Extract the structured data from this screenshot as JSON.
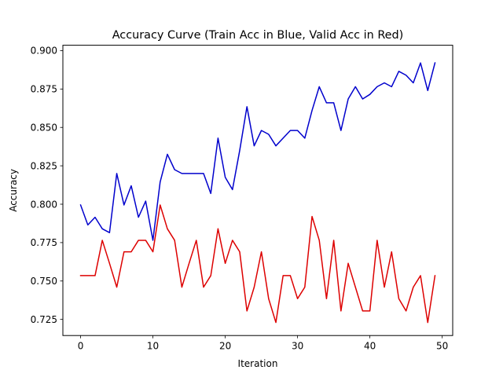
{
  "chart_data": {
    "type": "line",
    "title": "Accuracy Curve (Train Acc in Blue, Valid Acc in Red)",
    "xlabel": "Iteration",
    "ylabel": "Accuracy",
    "xlim": [
      -2.45,
      51.45
    ],
    "ylim": [
      0.7145,
      0.9035
    ],
    "xticks": [
      0,
      10,
      20,
      30,
      40,
      50
    ],
    "xtick_labels": [
      "0",
      "10",
      "20",
      "30",
      "40",
      "50"
    ],
    "yticks": [
      0.725,
      0.75,
      0.775,
      0.8,
      0.825,
      0.85,
      0.875,
      0.9
    ],
    "ytick_labels": [
      "0.725",
      "0.750",
      "0.775",
      "0.800",
      "0.825",
      "0.850",
      "0.875",
      "0.900"
    ],
    "grid": false,
    "x": [
      0,
      1,
      2,
      3,
      4,
      5,
      6,
      7,
      8,
      9,
      10,
      11,
      12,
      13,
      14,
      15,
      16,
      17,
      18,
      19,
      20,
      21,
      22,
      23,
      24,
      25,
      26,
      27,
      28,
      29,
      30,
      31,
      32,
      33,
      34,
      35,
      36,
      37,
      38,
      39,
      40,
      41,
      42,
      43,
      44,
      45,
      46,
      47,
      48,
      49
    ],
    "series": [
      {
        "color": "#0000cc",
        "values": [
          0.7995,
          0.7865,
          0.7915,
          0.784,
          0.7815,
          0.82,
          0.7995,
          0.812,
          0.7915,
          0.802,
          0.7765,
          0.8145,
          0.8325,
          0.8225,
          0.82,
          0.82,
          0.82,
          0.82,
          0.807,
          0.843,
          0.8175,
          0.8095,
          0.835,
          0.8635,
          0.838,
          0.848,
          0.8455,
          0.838,
          0.843,
          0.848,
          0.848,
          0.843,
          0.861,
          0.8765,
          0.866,
          0.866,
          0.848,
          0.8685,
          0.8765,
          0.8685,
          0.8715,
          0.8765,
          0.879,
          0.8765,
          0.8865,
          0.884,
          0.879,
          0.892,
          0.874,
          0.892
        ]
      },
      {
        "color": "#dd0000",
        "values": [
          0.7535,
          0.7535,
          0.7535,
          0.7765,
          0.7615,
          0.746,
          0.769,
          0.769,
          0.7765,
          0.7765,
          0.769,
          0.7995,
          0.784,
          0.7765,
          0.746,
          0.7615,
          0.7765,
          0.746,
          0.7535,
          0.784,
          0.7615,
          0.7765,
          0.769,
          0.7305,
          0.746,
          0.769,
          0.7385,
          0.723,
          0.7535,
          0.7535,
          0.7385,
          0.746,
          0.792,
          0.7765,
          0.7385,
          0.7765,
          0.7305,
          0.7615,
          0.746,
          0.7305,
          0.7305,
          0.7765,
          0.746,
          0.769,
          0.7385,
          0.7305,
          0.746,
          0.7535,
          0.723,
          0.7535
        ]
      }
    ]
  }
}
